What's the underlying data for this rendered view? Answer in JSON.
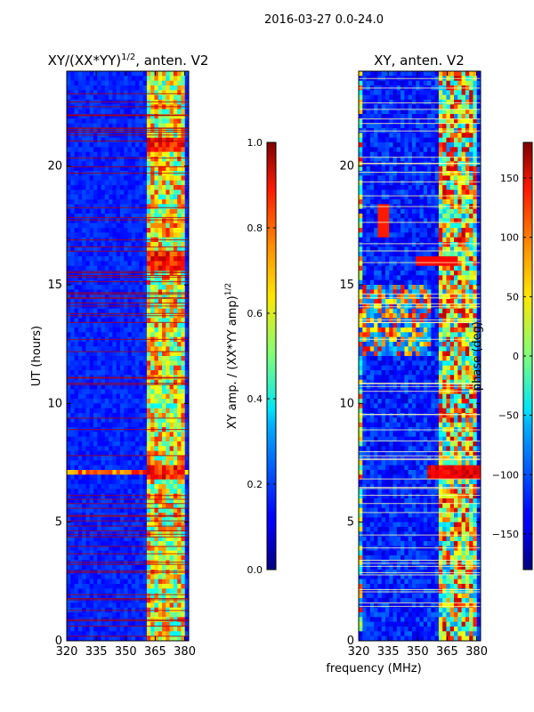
{
  "suptitle": "2016-03-27 0.0-24.0",
  "xlabel_shared": "frequency (MHz)",
  "chart_data": [
    {
      "type": "heatmap",
      "title_main": "XY/(XX*YY)",
      "title_exp": "1/2",
      "title_suffix": ", anten. V2",
      "ylabel": "UT (hours)",
      "xlim": [
        320,
        382
      ],
      "ylim": [
        0,
        24
      ],
      "xticks": [
        320,
        335,
        350,
        365,
        380
      ],
      "yticks": [
        0,
        5,
        10,
        15,
        20
      ],
      "colorbar": {
        "label_main": "XY amp. / (XX*YY amp)",
        "label_exp": "1/2",
        "range": [
          0.0,
          1.0
        ],
        "ticks": [
          "0.0",
          "0.2",
          "0.4",
          "0.6",
          "0.8",
          "1.0"
        ],
        "colormap": "jet"
      },
      "features": [
        {
          "region": "background 320-360 MHz, all hours",
          "value": 0.15
        },
        {
          "region": "band 361-380 MHz, all hours",
          "value": 0.6
        },
        {
          "region": "strong band 361-380 MHz, 6.7-7.5 h",
          "value": 0.85
        },
        {
          "region": "strong band 361-380 MHz, 15.5-16.5 h",
          "value": 0.85
        },
        {
          "region": "strong band 361-380 MHz, 20.6-21.2 h",
          "value": 0.8
        }
      ]
    },
    {
      "type": "heatmap",
      "title": "XY, anten. V2",
      "ylabel": "phase (deg)",
      "xlim": [
        320,
        382
      ],
      "ylim": [
        0,
        24
      ],
      "xticks": [
        320,
        335,
        350,
        365,
        380
      ],
      "yticks": [
        0,
        5,
        10,
        15,
        20
      ],
      "colorbar": {
        "label": "phase (deg)",
        "range": [
          -180,
          180
        ],
        "ticks": [
          "-150",
          "-100",
          "-50",
          "0",
          "50",
          "100",
          "150"
        ],
        "colormap": "jet"
      },
      "features": [
        {
          "region": "background 320-350 MHz, all hours",
          "value": -140
        },
        {
          "region": "band 360-380 MHz, all hours",
          "value": 60
        },
        {
          "region": "strong band 355-382 MHz, 6.8-7.4 h",
          "value": 150
        },
        {
          "region": "band 350-370 MHz, 15.8-16.2 h",
          "value": 150
        },
        {
          "region": "patchy 320-355 MHz, 12-15 h",
          "value": 40
        }
      ]
    }
  ]
}
